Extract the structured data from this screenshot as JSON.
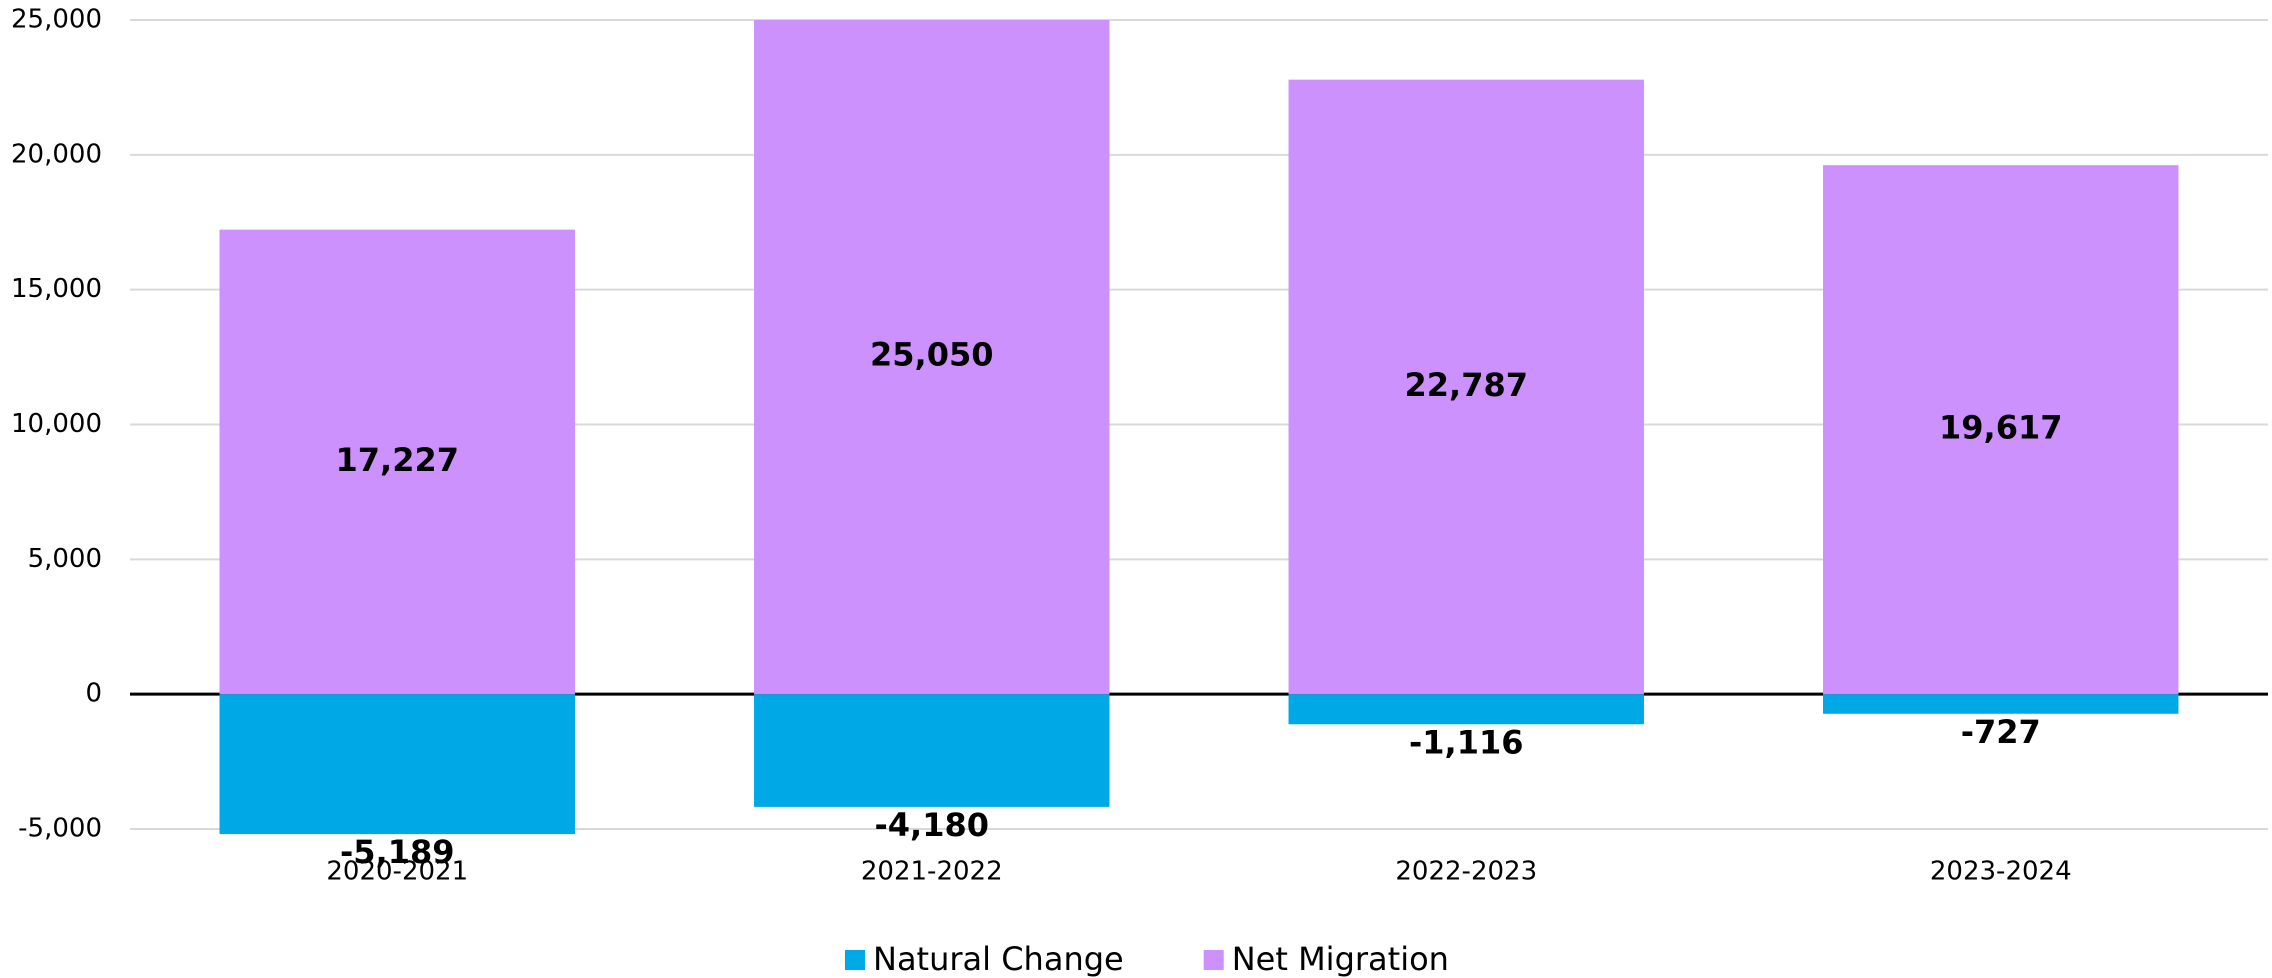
{
  "chart_data": {
    "type": "bar",
    "stacked": true,
    "categories": [
      "2020-2021",
      "2021-2022",
      "2022-2023",
      "2023-2024"
    ],
    "series": [
      {
        "name": "Natural Change",
        "color": "#00a8e6",
        "values": [
          -5189,
          -4180,
          -1116,
          -727
        ],
        "value_labels": [
          "-5,189",
          "-4,180",
          "-1,116",
          "-727"
        ]
      },
      {
        "name": "Net Migration",
        "color": "#cc91fc",
        "values": [
          17227,
          25050,
          22787,
          19617
        ],
        "value_labels": [
          "17,227",
          "25,050",
          "22,787",
          "19,617"
        ]
      }
    ],
    "ylim": [
      -5000,
      25000
    ],
    "yticks": [
      {
        "value": -5000,
        "label": "-5,000"
      },
      0,
      {
        "value": 5000,
        "label": "5,000"
      },
      {
        "value": 10000,
        "label": "10,000"
      },
      {
        "value": 15000,
        "label": "15,000"
      },
      {
        "value": 20000,
        "label": "20,000"
      },
      {
        "value": 25000,
        "label": "25,000"
      }
    ],
    "grid": true,
    "legend": "bottom"
  }
}
